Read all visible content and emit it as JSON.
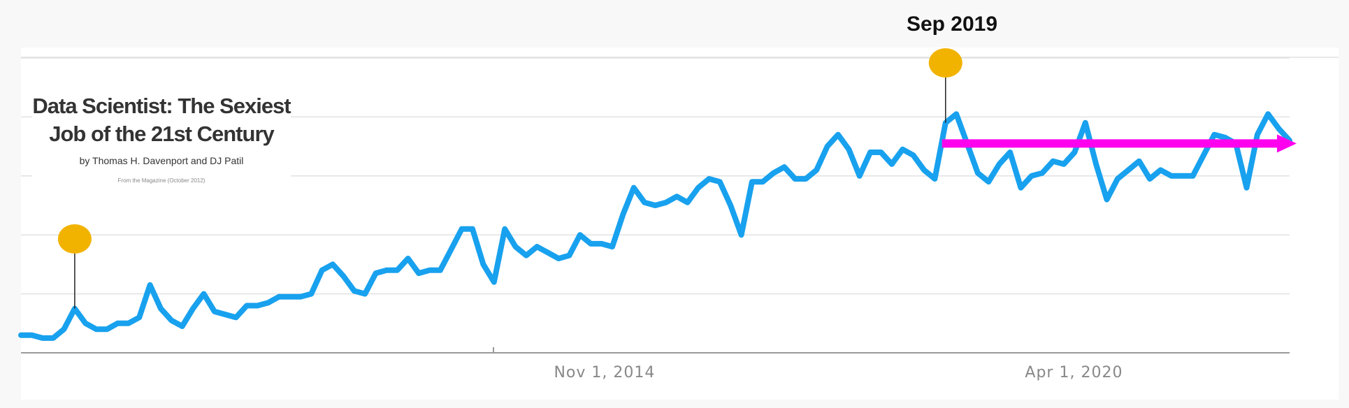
{
  "callout": {
    "peak_label": "Sep 2019"
  },
  "article": {
    "title_line1": "Data Scientist: The Sexiest",
    "title_line2": "Job of the 21st Century",
    "authors": "by Thomas H. Davenport and DJ Patil",
    "source": "From the Magazine (October 2012)"
  },
  "colors": {
    "line": "#18a1ee",
    "arrow": "#ff00ee",
    "marker": "#f2b300",
    "grid": "#e2e2e2",
    "axis": "#999999"
  },
  "chart_data": {
    "type": "line",
    "title": "",
    "xlabel": "",
    "ylabel": "",
    "x_ticks": [
      "Nov 1, 2014",
      "Apr 1, 2020"
    ],
    "x_tick_values": [
      11.96,
      21.58
    ],
    "xlim": [
      0,
      26
    ],
    "ylim": [
      0,
      100
    ],
    "grid": true,
    "series": [
      {
        "values": [
          6,
          6,
          5,
          5,
          8,
          15,
          10,
          8,
          8,
          10,
          10,
          12,
          23,
          15,
          11,
          9,
          15,
          20,
          14,
          13,
          12,
          16,
          16,
          17,
          19,
          19,
          19,
          20,
          28,
          30,
          26,
          21,
          20,
          27,
          28,
          28,
          32,
          27,
          28,
          28,
          35,
          42,
          42,
          30,
          24,
          42,
          36,
          33,
          36,
          34,
          32,
          33,
          40,
          37,
          37,
          36,
          47,
          56,
          51,
          50,
          51,
          53,
          51,
          56,
          59,
          58,
          50,
          40,
          58,
          58,
          61,
          63,
          59,
          59,
          62,
          70,
          74,
          69,
          60,
          68,
          68,
          64,
          69,
          67,
          62,
          59,
          78,
          81,
          71,
          61,
          58,
          64,
          68,
          56,
          60,
          61,
          65,
          64,
          68,
          78,
          64,
          52,
          59,
          62,
          65,
          59,
          62,
          60,
          60,
          60,
          67,
          74,
          73,
          71,
          56,
          74,
          81,
          76,
          72
        ]
      }
    ],
    "annotations": [
      {
        "type": "marker",
        "point_index": 5
      },
      {
        "type": "marker",
        "point_index": 86,
        "label": "Sep 2019"
      },
      {
        "type": "arrow",
        "from_index": 86,
        "to_index": 118,
        "y": 71
      }
    ]
  }
}
